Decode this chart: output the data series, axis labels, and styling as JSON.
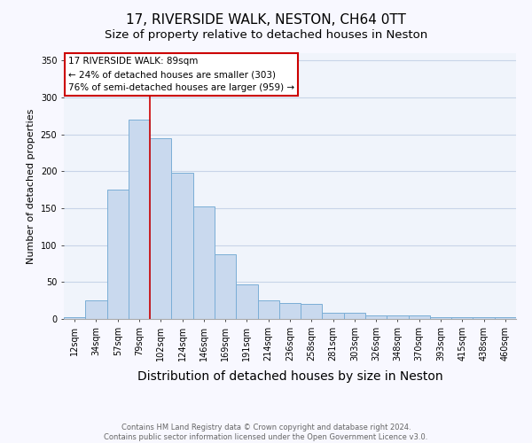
{
  "title": "17, RIVERSIDE WALK, NESTON, CH64 0TT",
  "subtitle": "Size of property relative to detached houses in Neston",
  "xlabel": "Distribution of detached houses by size in Neston",
  "ylabel": "Number of detached properties",
  "bin_labels": [
    "12sqm",
    "34sqm",
    "57sqm",
    "79sqm",
    "102sqm",
    "124sqm",
    "146sqm",
    "169sqm",
    "191sqm",
    "214sqm",
    "236sqm",
    "258sqm",
    "281sqm",
    "303sqm",
    "326sqm",
    "348sqm",
    "370sqm",
    "393sqm",
    "415sqm",
    "438sqm",
    "460sqm"
  ],
  "bar_values": [
    2,
    25,
    175,
    270,
    245,
    198,
    152,
    88,
    47,
    25,
    22,
    20,
    8,
    8,
    5,
    5,
    5,
    2,
    2,
    2,
    2
  ],
  "bar_color": "#c9d9ee",
  "bar_edge_color": "#7aaed6",
  "red_line_color": "#cc0000",
  "annotation_line1": "17 RIVERSIDE WALK: 89sqm",
  "annotation_line2": "← 24% of detached houses are smaller (303)",
  "annotation_line3": "76% of semi-detached houses are larger (959) →",
  "annotation_box_color": "#ffffff",
  "annotation_box_edge_color": "#cc0000",
  "ylim": [
    0,
    360
  ],
  "yticks": [
    0,
    50,
    100,
    150,
    200,
    250,
    300,
    350
  ],
  "footer_line1": "Contains HM Land Registry data © Crown copyright and database right 2024.",
  "footer_line2": "Contains public sector information licensed under the Open Government Licence v3.0.",
  "background_color": "#f8f8ff",
  "plot_bg_color": "#f0f4fb",
  "grid_color": "#c8d4e8",
  "title_fontsize": 11,
  "subtitle_fontsize": 9.5,
  "ylabel_fontsize": 8,
  "xlabel_fontsize": 10,
  "tick_fontsize": 7,
  "annotation_fontsize": 7.5,
  "footer_fontsize": 6
}
